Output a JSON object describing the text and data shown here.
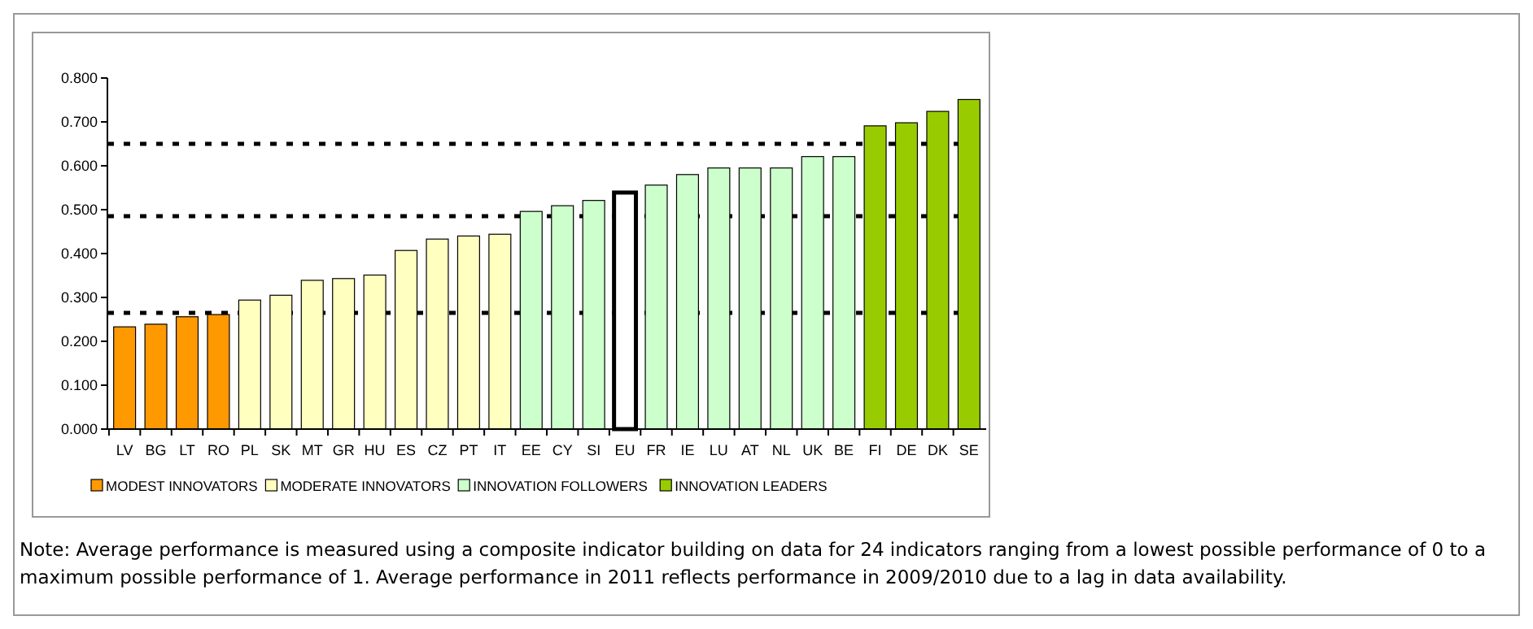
{
  "chart_data": {
    "type": "bar",
    "categories": [
      "LV",
      "BG",
      "LT",
      "RO",
      "PL",
      "SK",
      "MT",
      "GR",
      "HU",
      "ES",
      "CZ",
      "PT",
      "IT",
      "EE",
      "CY",
      "SI",
      "EU",
      "FR",
      "IE",
      "LU",
      "AT",
      "NL",
      "UK",
      "BE",
      "FI",
      "DE",
      "DK",
      "SE"
    ],
    "series": [
      {
        "name": "MODEST INNOVATORS",
        "color": "#ff9900",
        "values": [
          0.233,
          0.239,
          0.256,
          0.261,
          null,
          null,
          null,
          null,
          null,
          null,
          null,
          null,
          null,
          null,
          null,
          null,
          null,
          null,
          null,
          null,
          null,
          null,
          null,
          null,
          null,
          null,
          null,
          null
        ]
      },
      {
        "name": "MODERATE INNOVATORS",
        "color": "#ffffc0",
        "values": [
          null,
          null,
          null,
          null,
          0.294,
          0.305,
          0.339,
          0.343,
          0.351,
          0.407,
          0.433,
          0.44,
          0.444,
          null,
          null,
          null,
          null,
          null,
          null,
          null,
          null,
          null,
          null,
          null,
          null,
          null,
          null,
          null
        ]
      },
      {
        "name": "INNOVATION FOLLOWERS",
        "color": "#ccffcc",
        "values": [
          null,
          null,
          null,
          null,
          null,
          null,
          null,
          null,
          null,
          null,
          null,
          null,
          null,
          0.496,
          0.509,
          0.521,
          null,
          0.556,
          0.58,
          0.595,
          0.595,
          0.595,
          0.621,
          0.621,
          null,
          null,
          null,
          null
        ]
      },
      {
        "name": "INNOVATION LEADERS",
        "color": "#99cc00",
        "values": [
          null,
          null,
          null,
          null,
          null,
          null,
          null,
          null,
          null,
          null,
          null,
          null,
          null,
          null,
          null,
          null,
          null,
          null,
          null,
          null,
          null,
          null,
          null,
          null,
          0.691,
          0.698,
          0.724,
          0.751
        ]
      },
      {
        "color": "#ffffff",
        "values": [
          null,
          null,
          null,
          null,
          null,
          null,
          null,
          null,
          null,
          null,
          null,
          null,
          null,
          null,
          null,
          null,
          0.539,
          null,
          null,
          null,
          null,
          null,
          null,
          null,
          null,
          null,
          null,
          null
        ]
      }
    ],
    "ylim": [
      0,
      0.8
    ],
    "yticks": [
      {
        "value": 0,
        "label": "0.000"
      },
      {
        "value": 0.1,
        "label": "0.100"
      },
      {
        "value": 0.2,
        "label": "0.200"
      },
      {
        "value": 0.3,
        "label": "0.300"
      },
      {
        "value": 0.4,
        "label": "0.400"
      },
      {
        "value": 0.5,
        "label": "0.500"
      },
      {
        "value": 0.6,
        "label": "0.600"
      },
      {
        "value": 0.7,
        "label": "0.700"
      },
      {
        "value": 0.8,
        "label": "0.800"
      }
    ],
    "ref_lines": [
      {
        "axis": "y",
        "value": 0.65,
        "line_style": "dotted"
      },
      {
        "axis": "y",
        "value": 0.485,
        "line_style": "dotted"
      },
      {
        "axis": "y",
        "value": 0.265,
        "line_style": "dotted"
      }
    ],
    "legend": "bottom",
    "annotations": [
      "Note: Average performance is measured using a composite indicator building on data for 24 indicators ranging from a lowest possible performance of 0 to a maximum possible performance of 1. Average performance in 2011 reflects performance in 2009/2010 due to a lag in data availability."
    ]
  }
}
